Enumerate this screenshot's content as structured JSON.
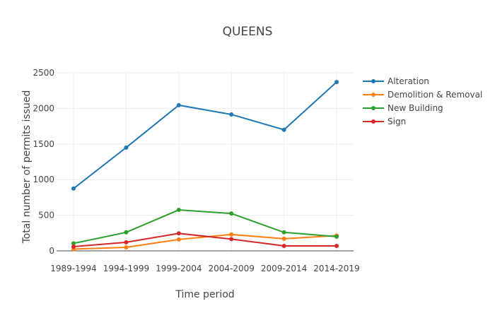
{
  "chart_data": {
    "type": "line",
    "title": "QUEENS",
    "xlabel": "Time period",
    "ylabel": "Total number of permits issued",
    "categories": [
      "1989-1994",
      "1994-1999",
      "1999-2004",
      "2004-2009",
      "2009-2014",
      "2014-2019"
    ],
    "ylim": [
      0,
      2500
    ],
    "yticks": [
      0,
      500,
      1000,
      1500,
      2000,
      2500
    ],
    "grid": true,
    "legend_position": "top-right",
    "series": [
      {
        "name": "Alteration",
        "color": "#1f77b4",
        "values": [
          875,
          1450,
          2045,
          1915,
          1700,
          2370
        ]
      },
      {
        "name": "Demolition & Removal",
        "color": "#ff7f0e",
        "values": [
          25,
          50,
          160,
          230,
          170,
          215
        ]
      },
      {
        "name": "New Building",
        "color": "#2ca02c",
        "values": [
          105,
          260,
          575,
          525,
          260,
          200
        ]
      },
      {
        "name": "Sign",
        "color": "#d62728",
        "values": [
          60,
          120,
          245,
          165,
          70,
          70
        ]
      }
    ]
  }
}
